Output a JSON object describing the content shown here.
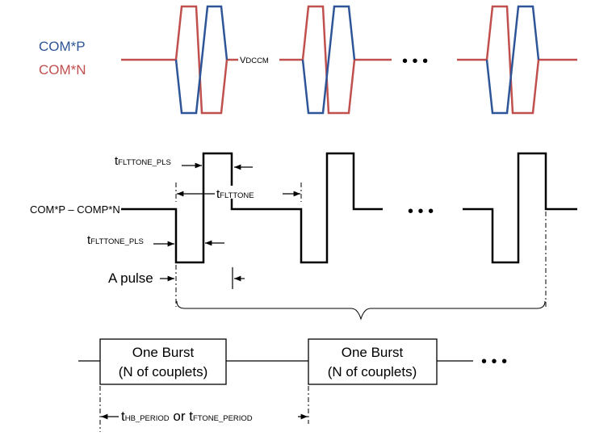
{
  "legend": {
    "comp": {
      "label": "COM*P",
      "color": "#2e5597"
    },
    "comn": {
      "label": "COM*N",
      "color": "#c0504d"
    }
  },
  "vdccm_label": "VDCCM",
  "ellipsis": "• • •",
  "diff_signal_label": "COM*P – COMP*N",
  "t_pls": {
    "main": "t",
    "sub": "FLTTONE_PLS"
  },
  "t_flttone": {
    "main": "t",
    "sub": "FLTTONE"
  },
  "pulse_label": "A pulse",
  "burst": {
    "line1": "One Burst",
    "line2": "(N of couplets)"
  },
  "period": {
    "t1": "t",
    "sub1": "HB_PERIOD",
    "or": " or ",
    "t2": "t",
    "sub2": "FTONE_PERIOD"
  },
  "colors": {
    "line": "#000000",
    "comp": "#2e5597",
    "comn": "#c0504d"
  }
}
